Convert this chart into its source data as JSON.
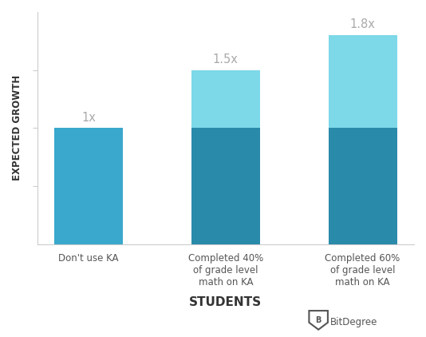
{
  "categories": [
    "Don't use KA",
    "Completed 40%\nof grade level\nmath on KA",
    "Completed 60%\nof grade level\nmath on KA"
  ],
  "base_values": [
    1.0,
    1.0,
    1.0
  ],
  "extra_values": [
    0.0,
    0.5,
    0.8
  ],
  "bar_labels": [
    "1x",
    "1.5x",
    "1.8x"
  ],
  "color_bar1": "#3aa8cc",
  "color_base_23": "#2a8aaa",
  "color_top": "#7dd8e8",
  "ylabel": "EXPECTED GROWTH",
  "xlabel": "STUDENTS",
  "background_color": "#ffffff",
  "label_color": "#aaaaaa",
  "axis_color": "#cccccc",
  "xlabel_color": "#333333",
  "ylabel_color": "#333333",
  "xtick_color": "#555555",
  "ylim": [
    0,
    2.0
  ],
  "bar_width": 0.5
}
